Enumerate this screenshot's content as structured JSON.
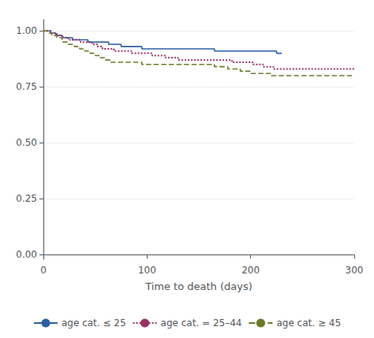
{
  "chart_data": {
    "type": "step",
    "xlabel": "Time to death (days)",
    "xlim": [
      0,
      300
    ],
    "ylim": [
      -0.02,
      1.05
    ],
    "xticks": [
      0,
      100,
      200,
      300
    ],
    "yticks": [
      {
        "value": 0.0,
        "label": "0.00"
      },
      {
        "value": 0.25,
        "label": "0.25"
      },
      {
        "value": 0.5,
        "label": "0.50"
      },
      {
        "value": 0.75,
        "label": "0.75"
      },
      {
        "value": 1.0,
        "label": "1.00"
      }
    ],
    "grid": true,
    "legend": "bottom",
    "series": [
      {
        "name": "age cat. ≤ 25",
        "color": "#2e5fa3",
        "line_style": "solid",
        "x": [
          0,
          3,
          7,
          12,
          18,
          22,
          28,
          33,
          38,
          43,
          48,
          53,
          58,
          63,
          68,
          75,
          85,
          95,
          105,
          115,
          125,
          140,
          155,
          165,
          175,
          185,
          195,
          205,
          215,
          225,
          230
        ],
        "values": [
          1.0,
          1.0,
          0.99,
          0.98,
          0.97,
          0.97,
          0.96,
          0.96,
          0.96,
          0.95,
          0.95,
          0.95,
          0.95,
          0.94,
          0.94,
          0.93,
          0.93,
          0.92,
          0.92,
          0.92,
          0.92,
          0.92,
          0.92,
          0.91,
          0.91,
          0.91,
          0.91,
          0.91,
          0.91,
          0.9,
          0.9
        ]
      },
      {
        "name": "age cat. = 25–44",
        "color": "#993366",
        "line_style": "dotted",
        "x": [
          0,
          4,
          8,
          13,
          19,
          24,
          30,
          36,
          42,
          47,
          52,
          57,
          62,
          68,
          75,
          85,
          95,
          105,
          118,
          130,
          145,
          158,
          170,
          182,
          192,
          202,
          212,
          222,
          232,
          242,
          255,
          265,
          278,
          290,
          300
        ],
        "values": [
          1.0,
          1.0,
          0.99,
          0.98,
          0.97,
          0.96,
          0.96,
          0.95,
          0.95,
          0.94,
          0.93,
          0.92,
          0.92,
          0.91,
          0.91,
          0.9,
          0.9,
          0.89,
          0.88,
          0.87,
          0.87,
          0.87,
          0.87,
          0.86,
          0.86,
          0.85,
          0.84,
          0.83,
          0.83,
          0.83,
          0.83,
          0.83,
          0.83,
          0.83,
          0.83
        ]
      },
      {
        "name": "age cat. ≥ 45",
        "color": "#6b7a2a",
        "line_style": "dashed",
        "x": [
          0,
          4,
          8,
          13,
          18,
          24,
          30,
          35,
          40,
          45,
          50,
          55,
          60,
          65,
          70,
          75,
          80,
          88,
          95,
          105,
          115,
          128,
          140,
          155,
          165,
          178,
          190,
          200,
          210,
          220,
          232,
          245,
          258,
          270,
          282,
          295,
          300
        ],
        "values": [
          1.0,
          0.99,
          0.98,
          0.97,
          0.95,
          0.94,
          0.93,
          0.92,
          0.91,
          0.9,
          0.89,
          0.88,
          0.87,
          0.86,
          0.86,
          0.86,
          0.86,
          0.86,
          0.85,
          0.85,
          0.85,
          0.85,
          0.85,
          0.85,
          0.84,
          0.83,
          0.82,
          0.81,
          0.81,
          0.8,
          0.8,
          0.8,
          0.8,
          0.8,
          0.8,
          0.8,
          0.8
        ]
      }
    ]
  }
}
